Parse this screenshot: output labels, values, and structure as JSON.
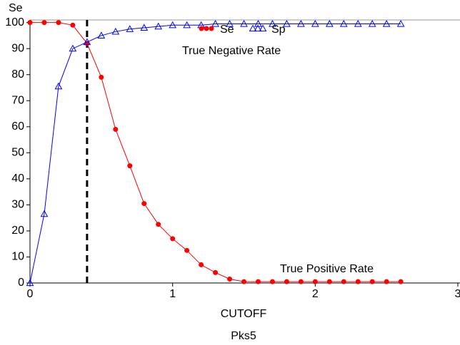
{
  "chart_data": {
    "type": "line",
    "y_label": "Se",
    "x_label": "CUTOFF",
    "footnote": "Pks5",
    "annotations": [
      "True Negative Rate",
      "True Positive Rate"
    ],
    "x": [
      0,
      0.1,
      0.2,
      0.3,
      0.4,
      0.5,
      0.6,
      0.7,
      0.8,
      0.9,
      1.0,
      1.1,
      1.2,
      1.3,
      1.4,
      1.5,
      1.6,
      1.7,
      1.8,
      1.9,
      2.0,
      2.1,
      2.2,
      2.3,
      2.4,
      2.5,
      2.6
    ],
    "series": [
      {
        "name": "Se",
        "color": "#ff0000",
        "marker": "circle",
        "values": [
          100,
          100,
          100,
          99,
          92,
          79,
          59,
          45,
          30.5,
          22.5,
          17,
          12.5,
          7,
          4,
          1.5,
          0.5,
          0.5,
          0.5,
          0.5,
          0.5,
          0.5,
          0.5,
          0.5,
          0.5,
          0.5,
          0.5,
          0.5
        ]
      },
      {
        "name": "Sp",
        "color": "#0000ff",
        "marker": "triangle",
        "values": [
          0,
          26.5,
          75.5,
          90,
          92.5,
          95,
          96.5,
          97.5,
          98,
          98.5,
          99,
          99,
          99,
          99.5,
          99.5,
          99.5,
          99.5,
          99.5,
          99.5,
          99.5,
          99.5,
          99.5,
          99.5,
          99.5,
          99.5,
          99.5,
          99.5
        ]
      }
    ],
    "reference_line": {
      "x": 0.4,
      "style": "dashed",
      "color": "#000000"
    },
    "xlim": [
      0,
      3
    ],
    "ylim": [
      0,
      101
    ],
    "xticks": [
      0,
      1,
      2,
      3
    ],
    "yticks": [
      0,
      10,
      20,
      30,
      40,
      50,
      60,
      70,
      80,
      90,
      100
    ],
    "legend": "top"
  }
}
